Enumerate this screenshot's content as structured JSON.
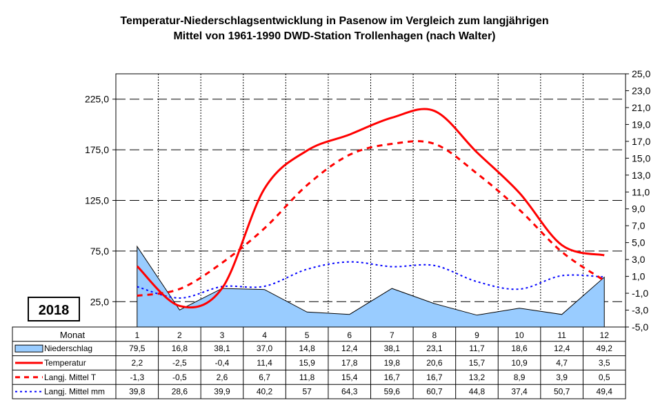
{
  "title": {
    "line1": "Temperatur-Niederschlagsentwicklung in Pasenow im Vergleich zum langjährigen",
    "line2": "Mittel von 1961-1990 DWD-Station Trollenhagen (nach Walter)"
  },
  "year": "2018",
  "table": {
    "month_header": "Monat",
    "months": [
      "1",
      "2",
      "3",
      "4",
      "5",
      "6",
      "7",
      "8",
      "9",
      "10",
      "11",
      "12"
    ],
    "rows": [
      {
        "key": "niederschlag",
        "label": "Niederschlag",
        "cells": [
          "79,5",
          "16,8",
          "38,1",
          "37,0",
          "14,8",
          "12,4",
          "38,1",
          "23,1",
          "11,7",
          "18,6",
          "12,4",
          "49,2"
        ]
      },
      {
        "key": "temperatur",
        "label": "Temperatur",
        "cells": [
          "2,2",
          "-2,5",
          "-0,4",
          "11,4",
          "15,9",
          "17,8",
          "19,8",
          "20,6",
          "15,7",
          "10,9",
          "4,7",
          "3,5"
        ]
      },
      {
        "key": "mittel_t",
        "label": "Langj. Mittel T",
        "cells": [
          "-1,3",
          "-0,5",
          "2,6",
          "6,7",
          "11,8",
          "15,4",
          "16,7",
          "16,7",
          "13,2",
          "8,9",
          "3,9",
          "0,5"
        ]
      },
      {
        "key": "mittel_mm",
        "label": "Langj. Mittel mm",
        "cells": [
          "39,8",
          "28,6",
          "39,9",
          "40,2",
          "57",
          "64,3",
          "59,6",
          "60,7",
          "44,8",
          "37,4",
          "50,7",
          "49,4"
        ]
      }
    ]
  },
  "colors": {
    "niederschlag_fill": "#99ccff",
    "niederschlag_stroke": "#000000",
    "temperatur": "#ff0000",
    "mittel_t": "#ff0000",
    "mittel_mm": "#0000ff"
  },
  "chart_data": {
    "type": "area",
    "categories": [
      "1",
      "2",
      "3",
      "4",
      "5",
      "6",
      "7",
      "8",
      "9",
      "10",
      "11",
      "12"
    ],
    "series": [
      {
        "name": "Niederschlag",
        "axis": "left",
        "style": "area",
        "values": [
          79.5,
          16.8,
          38.1,
          37.0,
          14.8,
          12.4,
          38.1,
          23.1,
          11.7,
          18.6,
          12.4,
          49.2
        ]
      },
      {
        "name": "Temperatur",
        "axis": "right",
        "style": "smooth-line",
        "values": [
          2.2,
          -2.5,
          -0.4,
          11.4,
          15.9,
          17.8,
          19.8,
          20.6,
          15.7,
          10.9,
          4.7,
          3.5
        ]
      },
      {
        "name": "Langj. Mittel T",
        "axis": "right",
        "style": "dashed-line",
        "values": [
          -1.3,
          -0.5,
          2.6,
          6.7,
          11.8,
          15.4,
          16.7,
          16.7,
          13.2,
          8.9,
          3.9,
          0.5
        ]
      },
      {
        "name": "Langj. Mittel mm",
        "axis": "left",
        "style": "dotted-line",
        "values": [
          39.8,
          28.6,
          39.9,
          40.2,
          57,
          64.3,
          59.6,
          60.7,
          44.8,
          37.4,
          50.7,
          49.4
        ]
      }
    ],
    "left_axis": {
      "min": 0,
      "max": 250,
      "ticks": [
        "25,0",
        "75,0",
        "125,0",
        "175,0",
        "225,0"
      ]
    },
    "right_axis": {
      "min": -5,
      "max": 25,
      "ticks": [
        "25,0",
        "23,0",
        "21,0",
        "19,0",
        "17,0",
        "15,0",
        "13,0",
        "11,0",
        "9,0",
        "7,0",
        "5,0",
        "3,0",
        "1,0",
        "-1,0",
        "-3,0",
        "-5,0"
      ]
    },
    "grid": true,
    "legend": "data-table"
  }
}
